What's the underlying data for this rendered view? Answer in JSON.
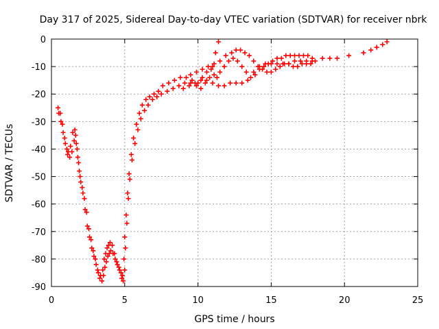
{
  "chart_data": {
    "type": "scatter",
    "title": "Day 317 of 2025, Sidereal Day-to-day VTEC variation (SDTVAR) for receiver nbrk",
    "xlabel": "GPS time / hours",
    "ylabel": "SDTVAR / TECUs",
    "xlim": [
      0,
      25
    ],
    "ylim": [
      -90,
      0
    ],
    "x_ticks": [
      0,
      5,
      10,
      15,
      20,
      25
    ],
    "y_ticks": [
      0,
      -10,
      -20,
      -30,
      -40,
      -50,
      -60,
      -70,
      -80,
      -90
    ],
    "grid": true,
    "marker": "plus",
    "series": [
      {
        "color": "#ff0000",
        "x": [
          0.45,
          0.6,
          0.75,
          0.9,
          1.05,
          1.15,
          1.3,
          1.45,
          1.6,
          1.7,
          1.8,
          1.9,
          2.0,
          2.15,
          2.3,
          2.45,
          2.6,
          2.75,
          2.9,
          3.05,
          3.2,
          3.35,
          3.5,
          3.6,
          3.7,
          3.8,
          3.9,
          4.0,
          4.15,
          4.3,
          4.45,
          4.6,
          4.75,
          4.85,
          4.95,
          5.0,
          5.1,
          5.2,
          5.3,
          5.45,
          5.6,
          5.8,
          6.0,
          6.2,
          6.45,
          6.7,
          7.0,
          7.3,
          7.6,
          8.0,
          8.4,
          8.8,
          9.2,
          9.6,
          10.0,
          10.3,
          10.6,
          10.9,
          11.1,
          11.3,
          11.5,
          11.8,
          12.1,
          12.4,
          12.7,
          13.0,
          13.3,
          13.6,
          13.9,
          14.2,
          14.5,
          14.8,
          15.1,
          15.4,
          15.7,
          16.0,
          16.3,
          16.6,
          16.9,
          17.2,
          17.5,
          17.8,
          18.5,
          19.0,
          19.5,
          20.3,
          21.3,
          21.8,
          22.2,
          22.6,
          22.9
        ],
        "y": [
          -25,
          -27,
          -31,
          -36,
          -40,
          -41,
          -39,
          -34,
          -33,
          -38,
          -43,
          -48,
          -52,
          -56,
          -62,
          -68,
          -72,
          -76,
          -79,
          -82,
          -85,
          -86,
          -84,
          -80,
          -78,
          -76,
          -75,
          -74,
          -75,
          -78,
          -81,
          -83,
          -85,
          -86,
          -80,
          -72,
          -64,
          -56,
          -49,
          -42,
          -36,
          -31,
          -27,
          -24,
          -22,
          -21,
          -20,
          -19,
          -17,
          -16,
          -15,
          -14,
          -14,
          -15,
          -16,
          -14,
          -12,
          -11,
          -13,
          -14,
          -12,
          -10,
          -8,
          -7,
          -8,
          -10,
          -12,
          -14,
          -13,
          -11,
          -10,
          -9,
          -8,
          -7,
          -7,
          -6,
          -6,
          -6,
          -6,
          -6,
          -6,
          -7,
          -7,
          -7,
          -7,
          -6,
          -5,
          -4,
          -3,
          -2,
          -1
        ]
      },
      {
        "color": "#ff0000",
        "x": [
          0.5,
          0.65,
          0.8,
          0.95,
          1.1,
          1.25,
          1.4,
          1.55,
          1.65,
          1.75,
          1.85,
          1.95,
          2.1,
          2.25,
          2.4,
          2.55,
          2.7,
          2.85,
          3.0,
          3.15,
          3.3,
          3.45,
          3.55,
          3.65,
          3.75,
          3.85,
          3.95,
          4.05,
          4.2,
          4.35,
          4.5,
          4.65,
          4.8,
          4.9,
          5.0,
          5.05,
          5.15,
          5.25,
          5.35,
          5.5,
          5.7,
          5.9,
          6.1,
          6.35,
          6.6,
          6.9,
          7.2,
          7.5,
          7.9,
          8.3,
          8.7,
          9.1,
          9.5,
          9.9,
          10.2,
          10.5,
          10.8,
          11.0,
          11.2,
          11.4
        ],
        "y": [
          -27,
          -30,
          -34,
          -38,
          -42,
          -43,
          -41,
          -37,
          -35,
          -40,
          -45,
          -50,
          -54,
          -58,
          -63,
          -69,
          -73,
          -77,
          -80,
          -84,
          -87,
          -88,
          -86,
          -83,
          -81,
          -79,
          -78,
          -77,
          -78,
          -80,
          -82,
          -84,
          -87,
          -88,
          -84,
          -76,
          -67,
          -58,
          -51,
          -44,
          -38,
          -33,
          -29,
          -26,
          -24,
          -22,
          -21,
          -20,
          -19,
          -18,
          -17,
          -16,
          -16,
          -17,
          -18,
          -16,
          -14,
          -10,
          -5,
          -1
        ]
      },
      {
        "color": "#ff0000",
        "x": [
          9.0,
          9.4,
          9.8,
          10.2,
          10.6,
          11.0,
          11.4,
          11.8,
          12.2,
          12.6,
          13.0,
          13.4,
          13.8,
          14.2,
          14.6,
          15.0,
          15.4,
          15.8,
          16.2,
          16.6,
          17.0,
          17.4,
          17.8
        ],
        "y": [
          -18,
          -17,
          -16,
          -15,
          -15,
          -16,
          -17,
          -17,
          -16,
          -16,
          -16,
          -15,
          -12,
          -10,
          -9,
          -9,
          -9,
          -9,
          -9,
          -8,
          -8,
          -8,
          -8
        ]
      },
      {
        "color": "#ff0000",
        "x": [
          9.5,
          9.9,
          10.3,
          10.7,
          11.1,
          11.5,
          11.9,
          12.3,
          12.6,
          12.9,
          13.2,
          13.5,
          13.8,
          14.1,
          14.4,
          14.7,
          15.0,
          15.3,
          15.6,
          15.9,
          16.2,
          16.5,
          16.8,
          17.1,
          17.4,
          17.7,
          18.0
        ],
        "y": [
          -13,
          -12,
          -11,
          -10,
          -9,
          -8,
          -6,
          -5,
          -4,
          -4,
          -5,
          -6,
          -8,
          -10,
          -11,
          -12,
          -12,
          -11,
          -10,
          -9,
          -9,
          -10,
          -10,
          -9,
          -9,
          -9,
          -8
        ]
      }
    ]
  }
}
